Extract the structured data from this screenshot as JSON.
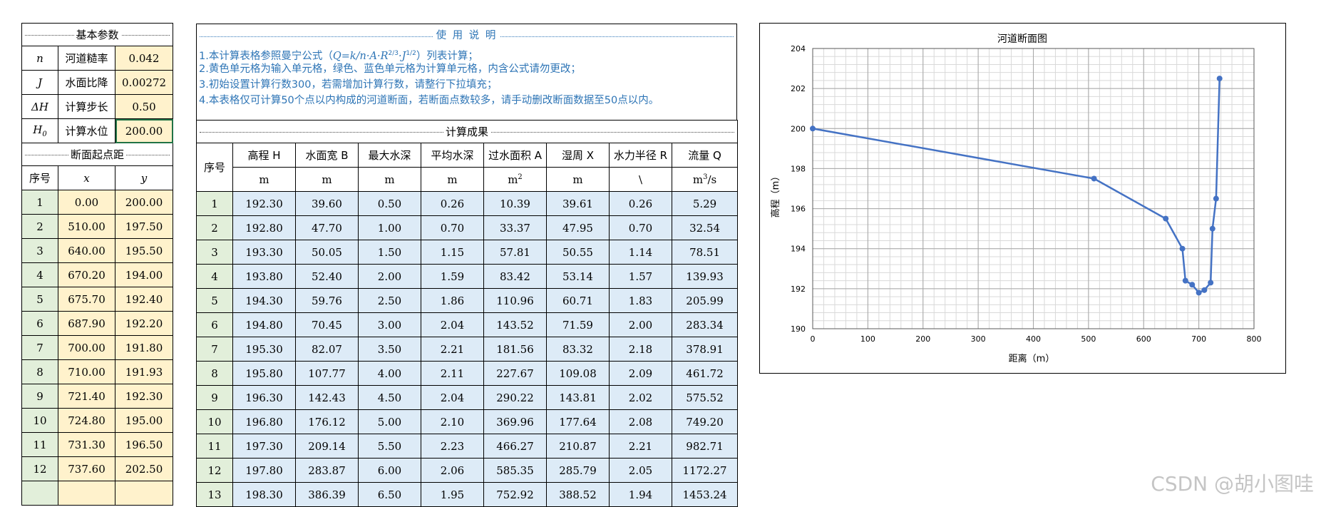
{
  "params": {
    "title": "基本参数",
    "rows": [
      {
        "sym": "n",
        "label": "河道糙率",
        "value": "0.042"
      },
      {
        "sym": "J",
        "label": "水面比降",
        "value": "0.00272"
      },
      {
        "sym": "ΔH",
        "label": "计算步长",
        "value": "0.50"
      },
      {
        "sym": "H",
        "sub": "0",
        "label": "计算水位",
        "value": "200.00"
      }
    ]
  },
  "section": {
    "title": "断面起点距",
    "headers": [
      "序号",
      "x",
      "y"
    ],
    "rows": [
      [
        "1",
        "0.00",
        "200.00"
      ],
      [
        "2",
        "510.00",
        "197.50"
      ],
      [
        "3",
        "640.00",
        "195.50"
      ],
      [
        "4",
        "670.20",
        "194.00"
      ],
      [
        "5",
        "675.70",
        "192.40"
      ],
      [
        "6",
        "687.90",
        "192.20"
      ],
      [
        "7",
        "700.00",
        "191.80"
      ],
      [
        "8",
        "710.00",
        "191.93"
      ],
      [
        "9",
        "721.40",
        "192.30"
      ],
      [
        "10",
        "724.80",
        "195.00"
      ],
      [
        "11",
        "731.30",
        "196.50"
      ],
      [
        "12",
        "737.60",
        "202.50"
      ]
    ]
  },
  "usage": {
    "title": "使 用 说 明",
    "line1_a": "1.本计算表格参照曼宁公式（",
    "line1_formula": "Q=k/n·A·R",
    "line1_sup1": "2/3",
    "line1_mid": "·J",
    "line1_sup2": "1/2",
    "line1_b": "）列表计算；",
    "line2": "2.黄色单元格为输入单元格，绿色、蓝色单元格为计算单元格，内含公式请勿更改；",
    "line3": "3.初始设置计算行数300，若需增加计算行数，请整行下拉填充；",
    "line4": "4.本表格仅可计算50个点以内构成的河道断面，若断面点数较多，请手动删改断面数据至50点以内。"
  },
  "results": {
    "title": "计算成果",
    "seq_header": "序号",
    "headers": [
      "高程 H",
      "水面宽 B",
      "最大水深",
      "平均水深",
      "过水面积 A",
      "湿周 X",
      "水力半径 R",
      "流量 Q"
    ],
    "units": [
      "m",
      "m",
      "m",
      "m",
      "m",
      "m",
      "\\",
      "m"
    ],
    "unit_sup": {
      "area": "2",
      "flow": "3",
      "flow_suffix": "/s"
    },
    "rows": [
      [
        "1",
        "192.30",
        "39.60",
        "0.50",
        "0.26",
        "10.39",
        "39.61",
        "0.26",
        "5.29"
      ],
      [
        "2",
        "192.80",
        "47.70",
        "1.00",
        "0.70",
        "33.37",
        "47.95",
        "0.70",
        "32.54"
      ],
      [
        "3",
        "193.30",
        "50.05",
        "1.50",
        "1.15",
        "57.81",
        "50.55",
        "1.14",
        "78.51"
      ],
      [
        "4",
        "193.80",
        "52.40",
        "2.00",
        "1.59",
        "83.42",
        "53.14",
        "1.57",
        "139.93"
      ],
      [
        "5",
        "194.30",
        "59.76",
        "2.50",
        "1.86",
        "110.96",
        "60.71",
        "1.83",
        "205.99"
      ],
      [
        "6",
        "194.80",
        "70.45",
        "3.00",
        "2.04",
        "143.52",
        "71.59",
        "2.00",
        "283.34"
      ],
      [
        "7",
        "195.30",
        "82.07",
        "3.50",
        "2.21",
        "181.56",
        "83.32",
        "2.18",
        "378.91"
      ],
      [
        "8",
        "195.80",
        "107.77",
        "4.00",
        "2.11",
        "227.67",
        "109.08",
        "2.09",
        "461.72"
      ],
      [
        "9",
        "196.30",
        "142.43",
        "4.50",
        "2.04",
        "290.22",
        "143.81",
        "2.02",
        "575.52"
      ],
      [
        "10",
        "196.80",
        "176.12",
        "5.00",
        "2.10",
        "369.96",
        "177.64",
        "2.08",
        "749.20"
      ],
      [
        "11",
        "197.30",
        "209.14",
        "5.50",
        "2.23",
        "466.27",
        "210.87",
        "2.21",
        "982.71"
      ],
      [
        "12",
        "197.80",
        "283.87",
        "6.00",
        "2.06",
        "585.35",
        "285.79",
        "2.05",
        "1172.27"
      ],
      [
        "13",
        "198.30",
        "386.39",
        "6.50",
        "1.95",
        "752.92",
        "388.52",
        "1.94",
        "1453.24"
      ]
    ]
  },
  "chart_data": {
    "type": "line",
    "title": "河道断面图",
    "xlabel": "距离（m）",
    "ylabel": "高程（m）",
    "xlim": [
      0,
      800
    ],
    "ylim": [
      190,
      204
    ],
    "xticks": [
      0,
      100,
      200,
      300,
      400,
      500,
      600,
      700,
      800
    ],
    "yticks": [
      190,
      192,
      194,
      196,
      198,
      200,
      202,
      204
    ],
    "grid": true,
    "color": "#4472C4",
    "x": [
      0,
      510,
      640,
      670.2,
      675.7,
      687.9,
      700,
      710,
      721.4,
      724.8,
      731.3,
      737.6
    ],
    "y": [
      200,
      197.5,
      195.5,
      194,
      192.4,
      192.2,
      191.8,
      191.93,
      192.3,
      195,
      196.5,
      202.5
    ]
  },
  "watermark": "CSDN @胡小图哇"
}
